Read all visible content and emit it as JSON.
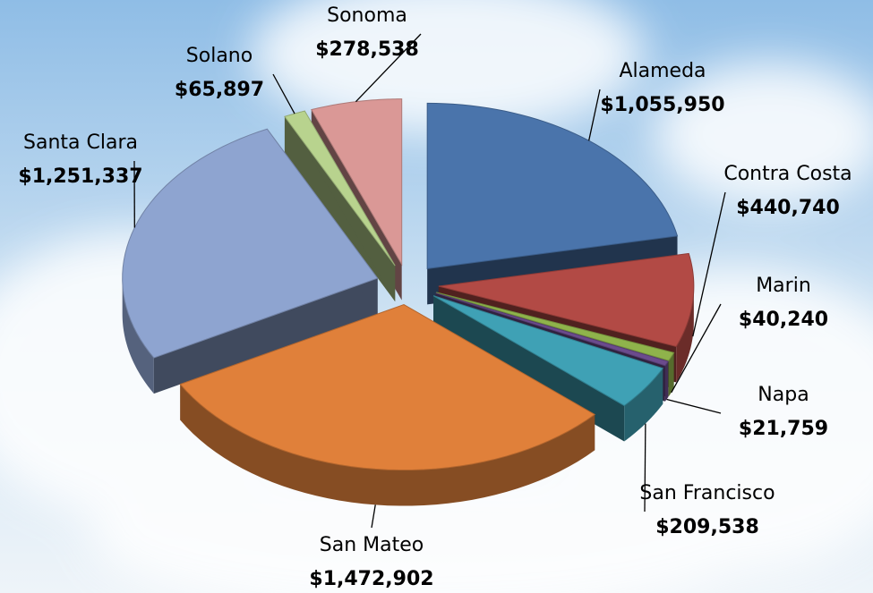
{
  "chart_data": {
    "type": "pie",
    "categories": [
      "Alameda",
      "Contra Costa",
      "Marin",
      "Napa",
      "San Francisco",
      "San Mateo",
      "Santa Clara",
      "Solano",
      "Sonoma"
    ],
    "values": [
      1055950,
      440740,
      40240,
      21759,
      209538,
      1472902,
      1251337,
      65897,
      278538
    ],
    "value_labels": [
      "$1,055,950",
      "$440,740",
      "$40,240",
      "$21,759",
      "$209,538",
      "$1,472,902",
      "$1,251,337",
      "$65,897",
      "$278,538"
    ],
    "colors": [
      "#4a74ab",
      "#b24a45",
      "#8fb34b",
      "#6b4b8d",
      "#3fa1b5",
      "#e0803a",
      "#8ea4d0",
      "#b8d38e",
      "#da9896"
    ]
  }
}
